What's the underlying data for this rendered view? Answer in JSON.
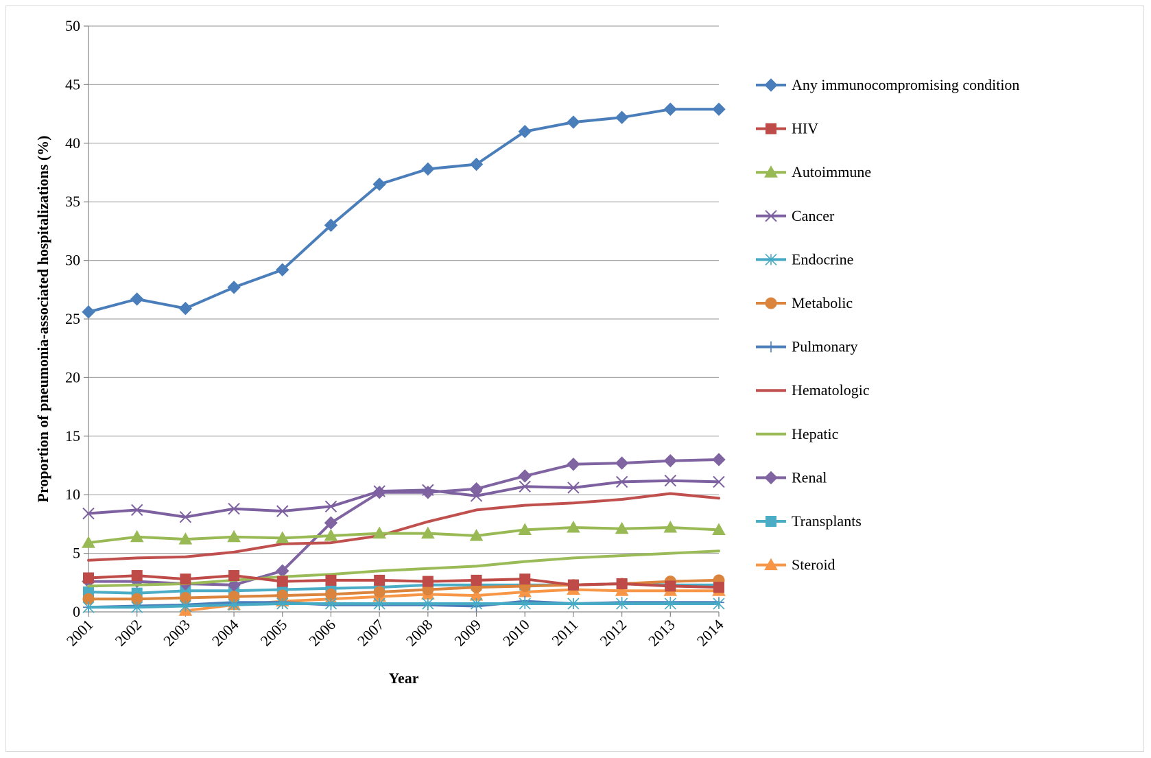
{
  "chart_data": {
    "type": "line",
    "title": "",
    "xlabel": "Year",
    "ylabel": "Proportion of pneumonia-associated hospitalizations (%)",
    "ylim": [
      0,
      50
    ],
    "yticks": [
      0,
      5,
      10,
      15,
      20,
      25,
      30,
      35,
      40,
      45,
      50
    ],
    "grid": "horizontal",
    "legend_position": "right",
    "x": [
      "2001",
      "2002",
      "2003",
      "2004",
      "2005",
      "2006",
      "2007",
      "2008",
      "2009",
      "2010",
      "2011",
      "2012",
      "2013",
      "2014"
    ],
    "series": [
      {
        "name": "Any immunocompromising condition",
        "color": "#4A7EBB",
        "marker": "diamond",
        "values": [
          25.6,
          26.7,
          25.9,
          27.7,
          29.2,
          33.0,
          36.5,
          37.8,
          38.2,
          41.0,
          41.8,
          42.2,
          42.9,
          42.9
        ]
      },
      {
        "name": "HIV",
        "color": "#BE4B48",
        "marker": "square",
        "values": [
          2.9,
          3.1,
          2.8,
          3.1,
          2.6,
          2.7,
          2.7,
          2.6,
          2.7,
          2.8,
          2.3,
          2.4,
          2.2,
          2.1
        ]
      },
      {
        "name": "Autoimmune",
        "color": "#98B954",
        "marker": "triangle",
        "values": [
          5.9,
          6.4,
          6.2,
          6.4,
          6.3,
          6.5,
          6.7,
          6.7,
          6.5,
          7.0,
          7.2,
          7.1,
          7.2,
          7.0
        ]
      },
      {
        "name": "Cancer",
        "color": "#7D60A0",
        "marker": "x",
        "values": [
          8.4,
          8.7,
          8.1,
          8.8,
          8.6,
          9.0,
          10.3,
          10.4,
          9.9,
          10.7,
          10.6,
          11.1,
          11.2,
          11.1
        ]
      },
      {
        "name": "Endocrine",
        "color": "#46AAC5",
        "marker": "asterisk",
        "values": [
          0.4,
          0.4,
          0.5,
          0.6,
          0.7,
          0.7,
          0.7,
          0.7,
          0.7,
          0.7,
          0.7,
          0.7,
          0.7,
          0.7
        ]
      },
      {
        "name": "Metabolic",
        "color": "#DB843D",
        "marker": "circle",
        "values": [
          1.1,
          1.1,
          1.2,
          1.3,
          1.4,
          1.5,
          1.7,
          1.9,
          2.1,
          2.2,
          2.3,
          2.4,
          2.6,
          2.7
        ]
      },
      {
        "name": "Pulmonary",
        "color": "#4A7EBB",
        "marker": "plus",
        "values": [
          0.4,
          0.5,
          0.6,
          0.8,
          0.8,
          0.6,
          0.6,
          0.6,
          0.5,
          0.9,
          0.7,
          0.8,
          0.8,
          0.8
        ]
      },
      {
        "name": "Hematologic",
        "color": "#C0504D",
        "marker": "none",
        "values": [
          4.4,
          4.6,
          4.7,
          5.1,
          5.8,
          5.9,
          6.5,
          7.7,
          8.7,
          9.1,
          9.3,
          9.6,
          10.1,
          9.7
        ]
      },
      {
        "name": "Hepatic",
        "color": "#9BBB59",
        "marker": "none",
        "values": [
          2.2,
          2.3,
          2.4,
          2.7,
          3.0,
          3.2,
          3.5,
          3.7,
          3.9,
          4.3,
          4.6,
          4.8,
          5.0,
          5.2
        ]
      },
      {
        "name": "Renal",
        "color": "#8064A2",
        "marker": "diamond",
        "values": [
          2.6,
          2.6,
          2.4,
          2.3,
          3.5,
          7.6,
          10.2,
          10.2,
          10.5,
          11.6,
          12.6,
          12.7,
          12.9,
          13.0
        ]
      },
      {
        "name": "Transplants",
        "color": "#4BACC6",
        "marker": "square",
        "values": [
          1.7,
          1.6,
          1.8,
          1.8,
          1.9,
          2.0,
          2.1,
          2.3,
          2.3,
          2.3,
          2.3,
          2.4,
          2.3,
          2.3
        ]
      },
      {
        "name": "Steroid",
        "color": "#F79646",
        "marker": "triangle",
        "values": [
          null,
          null,
          0.1,
          0.6,
          0.9,
          1.1,
          1.3,
          1.5,
          1.4,
          1.7,
          1.9,
          1.8,
          1.8,
          1.8
        ]
      }
    ]
  }
}
